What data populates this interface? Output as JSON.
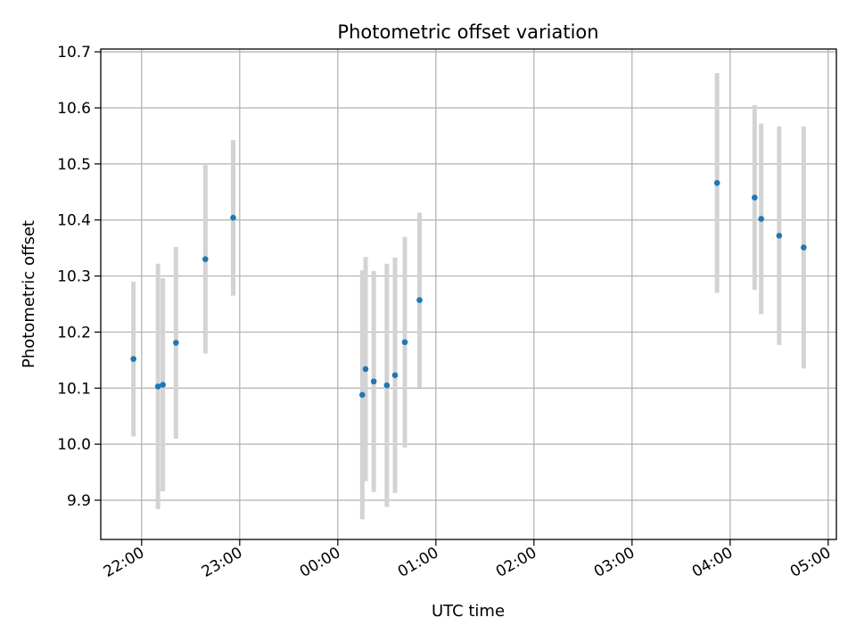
{
  "chart_data": {
    "type": "scatter",
    "title": "Photometric offset variation",
    "xlabel": "UTC time",
    "ylabel": "Photometric offset",
    "xlim": [
      "21:35",
      "05:05"
    ],
    "ylim": [
      9.83,
      10.705
    ],
    "grid": true,
    "x_ticks": [
      "22:00",
      "23:00",
      "00:00",
      "01:00",
      "02:00",
      "03:00",
      "04:00",
      "05:00"
    ],
    "y_ticks": [
      "9.9",
      "10.0",
      "10.1",
      "10.2",
      "10.3",
      "10.4",
      "10.5",
      "10.6",
      "10.7"
    ],
    "errorbar_color": "#d3d3d3",
    "marker_color": "#1f77b4",
    "points": [
      {
        "x": "21:55",
        "y": 10.152,
        "err": 0.138
      },
      {
        "x": "22:10",
        "y": 10.103,
        "err": 0.219
      },
      {
        "x": "22:13",
        "y": 10.106,
        "err": 0.19
      },
      {
        "x": "22:21",
        "y": 10.181,
        "err": 0.171
      },
      {
        "x": "22:39",
        "y": 10.33,
        "err": 0.168
      },
      {
        "x": "22:56",
        "y": 10.404,
        "err": 0.139
      },
      {
        "x": "00:15",
        "y": 10.088,
        "err": 0.222
      },
      {
        "x": "00:17",
        "y": 10.134,
        "err": 0.2
      },
      {
        "x": "00:22",
        "y": 10.112,
        "err": 0.197
      },
      {
        "x": "00:30",
        "y": 10.105,
        "err": 0.217
      },
      {
        "x": "00:35",
        "y": 10.123,
        "err": 0.21
      },
      {
        "x": "00:41",
        "y": 10.182,
        "err": 0.188
      },
      {
        "x": "00:50",
        "y": 10.257,
        "err": 0.156
      },
      {
        "x": "03:52",
        "y": 10.466,
        "err": 0.196
      },
      {
        "x": "04:15",
        "y": 10.44,
        "err": 0.165
      },
      {
        "x": "04:19",
        "y": 10.402,
        "err": 0.17
      },
      {
        "x": "04:30",
        "y": 10.372,
        "err": 0.195
      },
      {
        "x": "04:45",
        "y": 10.351,
        "err": 0.216
      }
    ]
  }
}
